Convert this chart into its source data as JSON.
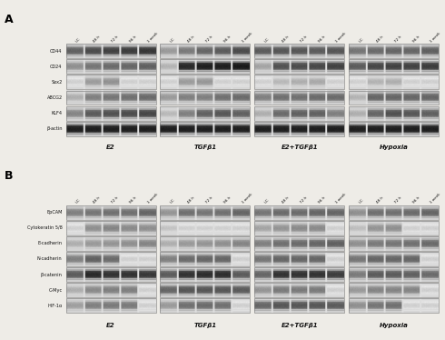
{
  "panel_A_proteins": [
    "CD44",
    "CD24",
    "Sox2",
    "ABCG2",
    "KLF4",
    "β-actin"
  ],
  "panel_B_proteins": [
    "EpCAM",
    "Cytokeratin 5/8",
    "E-cadherin",
    "N-cadherin",
    "β-catenin",
    "C-Myc",
    "HIF-1α"
  ],
  "treatments": [
    "E2",
    "TGFβ1",
    "E2+TGFβ1",
    "Hypoxia"
  ],
  "time_points": [
    "UC",
    "48 h",
    "72 h",
    "96 h",
    "1 week"
  ],
  "panel_label_A": "A",
  "panel_label_B": "B",
  "figure_bg": "#eeece7",
  "A_band_intensities": {
    "CD44": [
      [
        0.5,
        0.42,
        0.38,
        0.36,
        0.34
      ],
      [
        0.72,
        0.6,
        0.52,
        0.48,
        0.42
      ],
      [
        0.48,
        0.46,
        0.46,
        0.48,
        0.46
      ],
      [
        0.58,
        0.54,
        0.52,
        0.52,
        0.5
      ]
    ],
    "CD24": [
      [
        0.68,
        0.58,
        0.54,
        0.52,
        0.5
      ],
      [
        0.82,
        0.28,
        0.24,
        0.24,
        0.22
      ],
      [
        0.76,
        0.44,
        0.42,
        0.4,
        0.38
      ],
      [
        0.48,
        0.4,
        0.38,
        0.38,
        0.36
      ]
    ],
    "Sox2": [
      [
        0.93,
        0.73,
        0.69,
        0.93,
        0.93
      ],
      [
        0.93,
        0.73,
        0.71,
        0.93,
        0.93
      ],
      [
        0.93,
        0.84,
        0.8,
        0.78,
        0.93
      ],
      [
        0.93,
        0.82,
        0.8,
        0.93,
        0.93
      ]
    ],
    "ABCG2": [
      [
        0.8,
        0.62,
        0.58,
        0.56,
        0.54
      ],
      [
        0.72,
        0.62,
        0.62,
        0.56,
        0.54
      ],
      [
        0.62,
        0.56,
        0.56,
        0.54,
        0.54
      ],
      [
        0.82,
        0.52,
        0.52,
        0.52,
        0.52
      ]
    ],
    "KLF4": [
      [
        0.64,
        0.48,
        0.44,
        0.42,
        0.4
      ],
      [
        0.84,
        0.62,
        0.5,
        0.46,
        0.5
      ],
      [
        0.8,
        0.54,
        0.5,
        0.5,
        0.62
      ],
      [
        0.8,
        0.52,
        0.44,
        0.46,
        0.5
      ]
    ],
    "b-actin": [
      [
        0.24,
        0.24,
        0.24,
        0.24,
        0.24
      ],
      [
        0.24,
        0.24,
        0.24,
        0.24,
        0.24
      ],
      [
        0.24,
        0.24,
        0.24,
        0.24,
        0.24
      ],
      [
        0.24,
        0.24,
        0.24,
        0.24,
        0.24
      ]
    ]
  },
  "B_band_intensities": {
    "EpCAM": [
      [
        0.62,
        0.58,
        0.56,
        0.56,
        0.52
      ],
      [
        0.7,
        0.56,
        0.58,
        0.56,
        0.52
      ],
      [
        0.58,
        0.54,
        0.54,
        0.52,
        0.52
      ],
      [
        0.68,
        0.56,
        0.56,
        0.54,
        0.52
      ]
    ],
    "Cytokeratin 5/8": [
      [
        0.93,
        0.68,
        0.64,
        0.66,
        0.68
      ],
      [
        0.88,
        0.93,
        0.93,
        0.93,
        0.93
      ],
      [
        0.76,
        0.7,
        0.66,
        0.66,
        0.93
      ],
      [
        0.86,
        0.7,
        0.68,
        0.93,
        0.93
      ]
    ],
    "E-cadherin": [
      [
        0.8,
        0.72,
        0.7,
        0.68,
        0.64
      ],
      [
        0.8,
        0.72,
        0.7,
        0.68,
        0.64
      ],
      [
        0.62,
        0.56,
        0.54,
        0.52,
        0.5
      ],
      [
        0.68,
        0.6,
        0.58,
        0.56,
        0.54
      ]
    ],
    "N-cadherin": [
      [
        0.62,
        0.5,
        0.54,
        0.93,
        0.93
      ],
      [
        0.62,
        0.54,
        0.52,
        0.52,
        0.93
      ],
      [
        0.58,
        0.52,
        0.52,
        0.52,
        0.93
      ],
      [
        0.58,
        0.52,
        0.52,
        0.52,
        0.93
      ]
    ],
    "b-catenin": [
      [
        0.48,
        0.28,
        0.32,
        0.32,
        0.34
      ],
      [
        0.48,
        0.32,
        0.3,
        0.3,
        0.48
      ],
      [
        0.52,
        0.32,
        0.32,
        0.32,
        0.36
      ],
      [
        0.6,
        0.48,
        0.48,
        0.5,
        0.54
      ]
    ],
    "C-Myc": [
      [
        0.8,
        0.66,
        0.62,
        0.62,
        0.93
      ],
      [
        0.52,
        0.46,
        0.46,
        0.46,
        0.48
      ],
      [
        0.7,
        0.6,
        0.6,
        0.6,
        0.93
      ],
      [
        0.72,
        0.64,
        0.64,
        0.64,
        0.93
      ]
    ],
    "HIF-1a": [
      [
        0.74,
        0.62,
        0.6,
        0.6,
        0.93
      ],
      [
        0.72,
        0.56,
        0.54,
        0.56,
        0.93
      ],
      [
        0.52,
        0.46,
        0.46,
        0.46,
        0.48
      ],
      [
        0.68,
        0.58,
        0.56,
        0.93,
        0.93
      ]
    ]
  }
}
